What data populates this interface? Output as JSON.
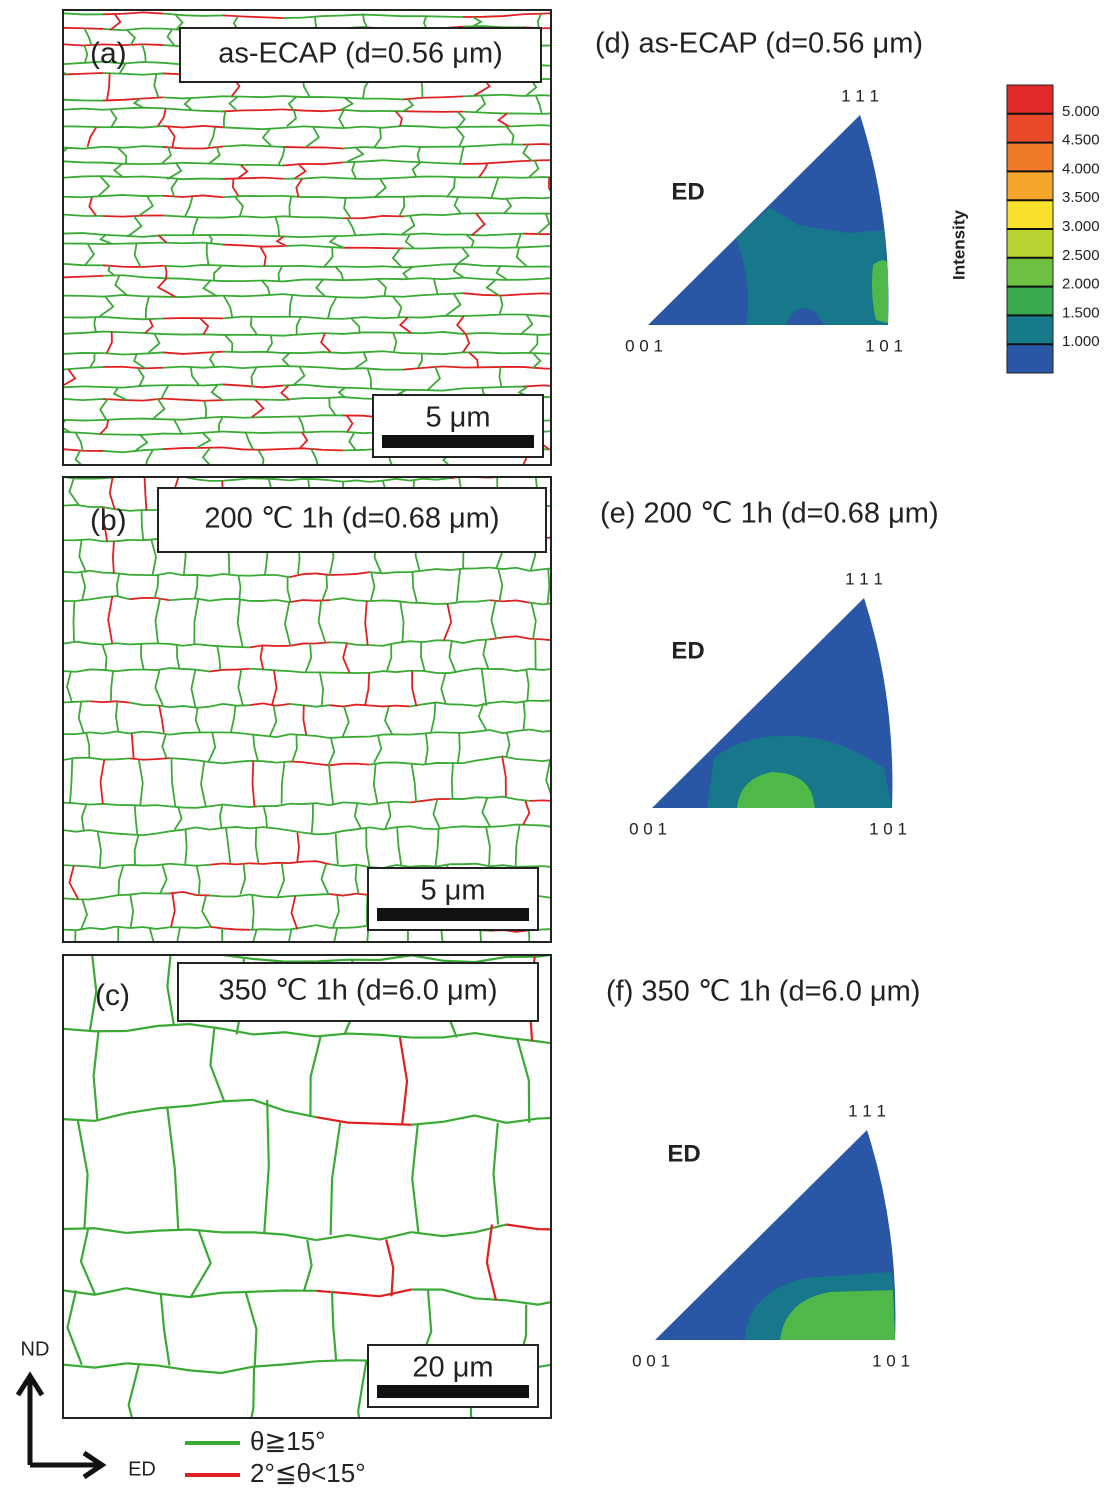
{
  "panels": [
    {
      "label": "(a)",
      "title": "as-ECAP (d=0.56 μm)",
      "scale_bar": "5 μm"
    },
    {
      "label": "(b)",
      "title": "200 ℃ 1h (d=0.68 μm)",
      "scale_bar": "5 μm"
    },
    {
      "label": "(c)",
      "title": "350 ℃ 1h (d=6.0 μm)",
      "scale_bar": "20 μm"
    }
  ],
  "ipf": [
    {
      "title": "(d) as-ECAP (d=0.56 μm)",
      "direction": "ED",
      "corner_111": "1 1 1",
      "corner_001": "0 0 1",
      "corner_101": "1 0 1"
    },
    {
      "title": "(e) 200 ℃ 1h (d=0.68 μm)",
      "direction": "ED",
      "corner_111": "1 1 1",
      "corner_001": "0 0 1",
      "corner_101": "1 0 1"
    },
    {
      "title": "(f) 350 ℃ 1h (d=6.0 μm)",
      "direction": "ED",
      "corner_111": "1 1 1",
      "corner_001": "0 0 1",
      "corner_101": "1 0 1"
    }
  ],
  "colorbar": {
    "label": "Intensity",
    "ticks": [
      "5.000",
      "4.500",
      "4.000",
      "3.500",
      "3.000",
      "2.500",
      "2.000",
      "1.500",
      "1.000"
    ]
  },
  "axes": {
    "vertical": "ND",
    "horizontal": "ED"
  },
  "legend": [
    {
      "label": "θ≧15°",
      "color": "#3aaa35"
    },
    {
      "label": "2°≦θ<15°",
      "color": "#e02020"
    }
  ]
}
